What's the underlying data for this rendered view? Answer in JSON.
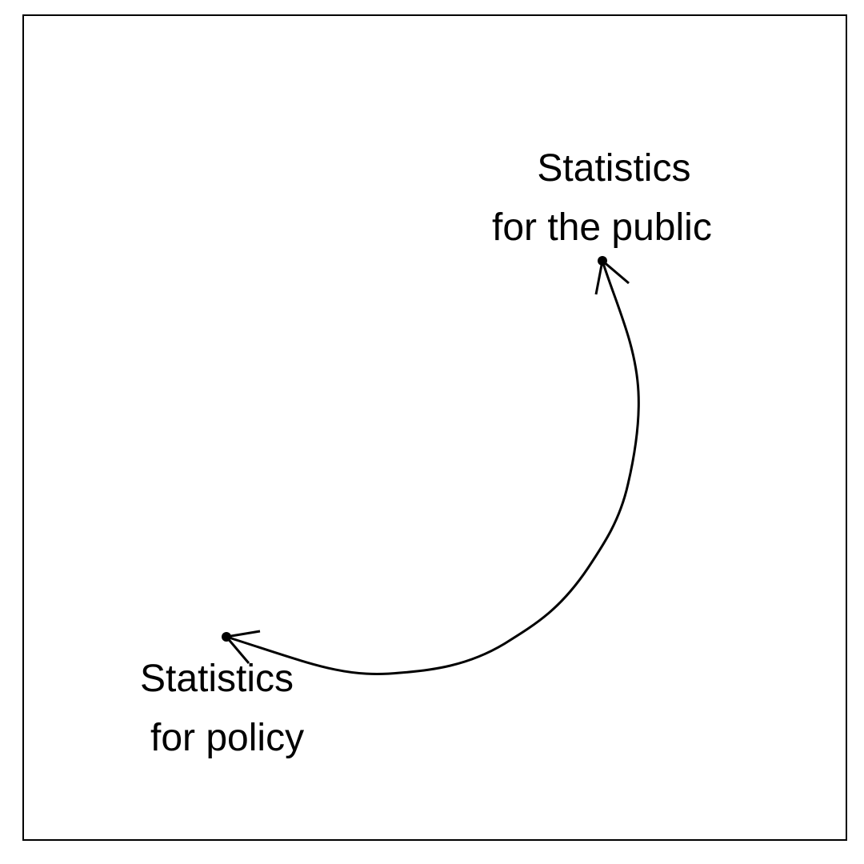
{
  "diagram": {
    "nodes": {
      "public": {
        "line1": "Statistics",
        "line2": "for the public"
      },
      "policy": {
        "line1": "Statistics",
        "line2": "for policy"
      }
    },
    "connector": {
      "from": "public",
      "to": "policy",
      "style": "curved line with open arrowheads at both ends",
      "color": "#000000"
    }
  }
}
